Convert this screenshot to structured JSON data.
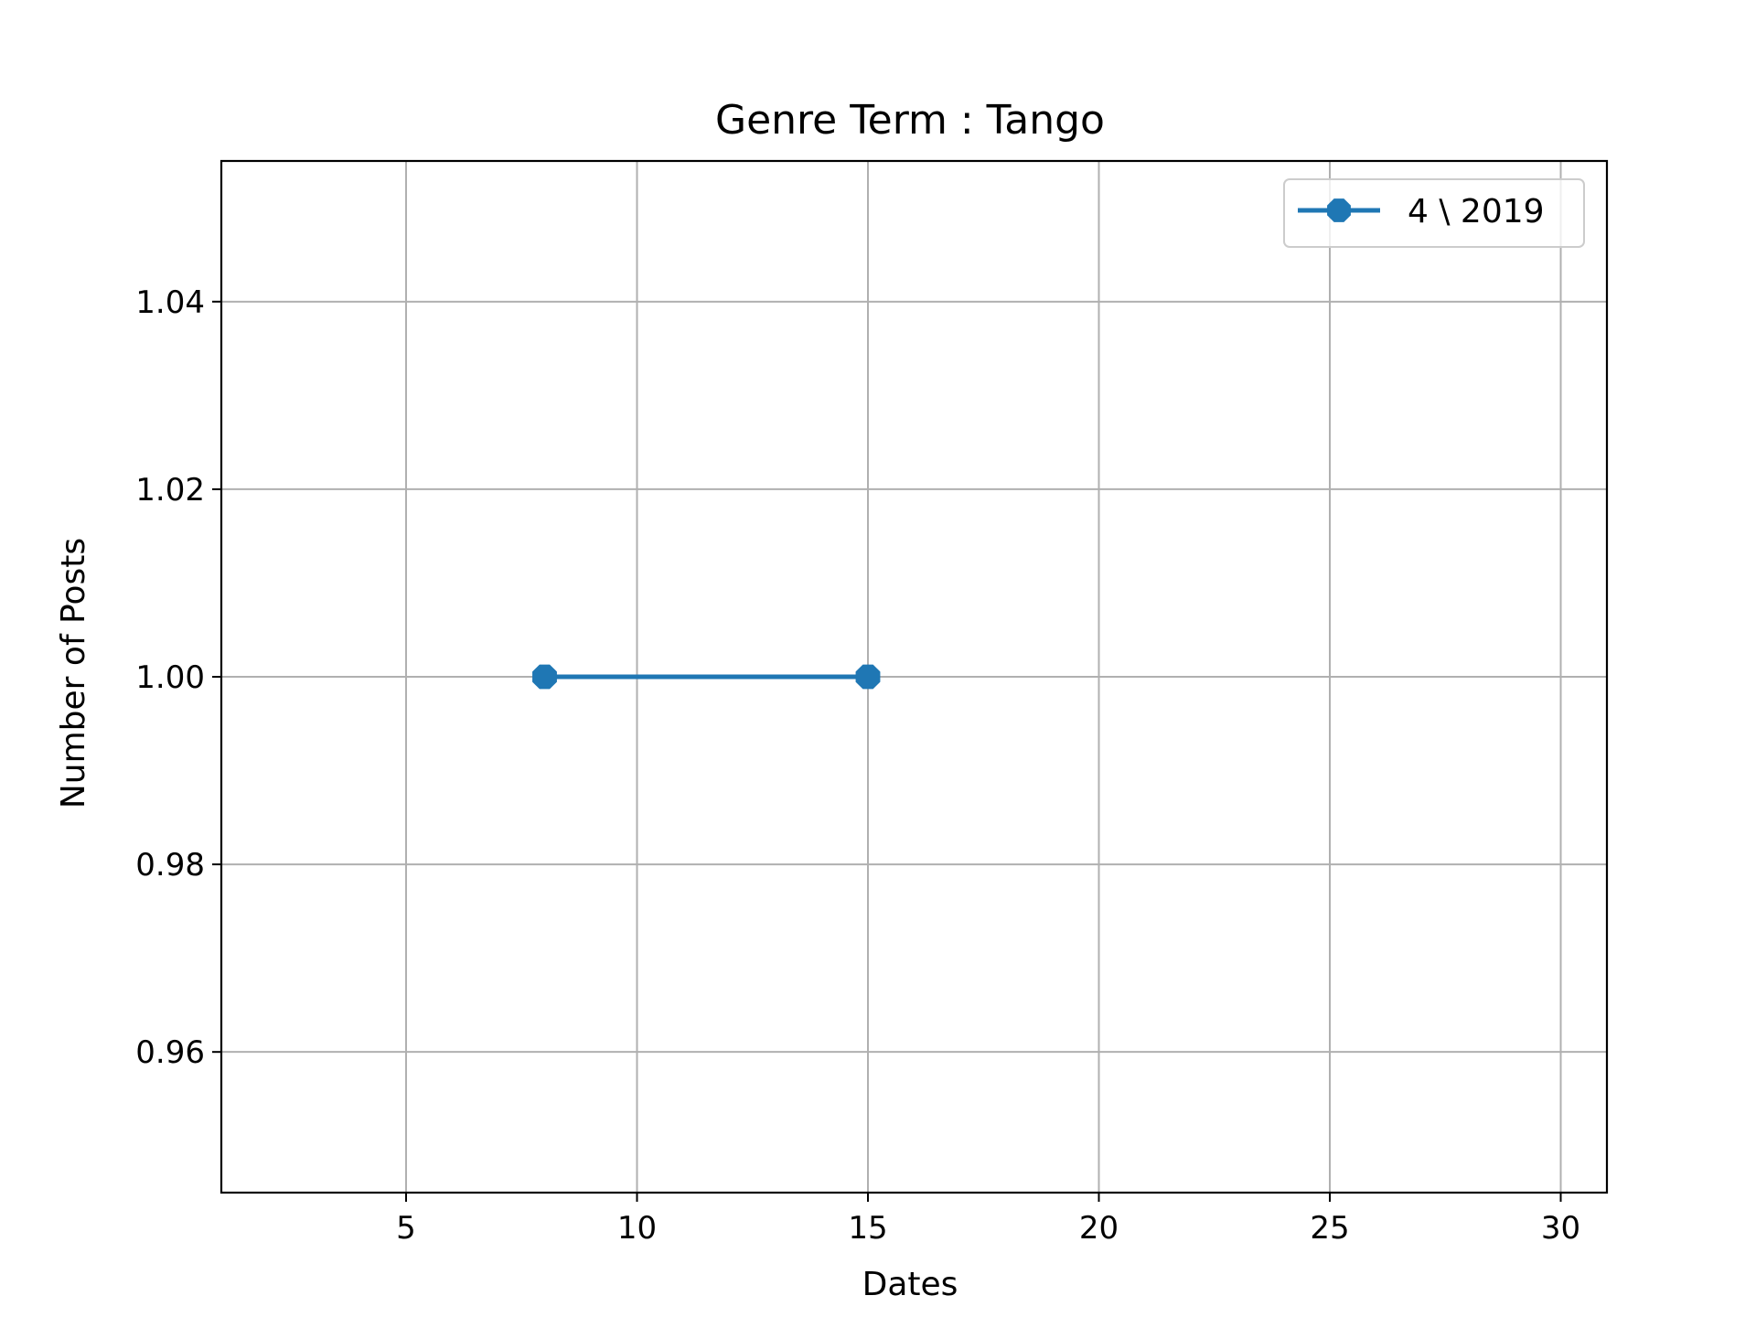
{
  "chart_data": {
    "type": "line",
    "title": "Genre Term : Tango",
    "xlabel": "Dates",
    "ylabel": "Number of Posts",
    "xlim": [
      1,
      31
    ],
    "ylim": [
      0.945,
      1.055
    ],
    "xticks": [
      5,
      10,
      15,
      20,
      25,
      30
    ],
    "yticks": [
      0.96,
      0.98,
      1.0,
      1.02,
      1.04
    ],
    "xtick_labels": [
      "5",
      "10",
      "15",
      "20",
      "25",
      "30"
    ],
    "ytick_labels": [
      "0.96",
      "0.98",
      "1.00",
      "1.02",
      "1.04"
    ],
    "grid": true,
    "legend_position": "top-right",
    "series": [
      {
        "name": "4 \\ 2019",
        "color": "#1f77b4",
        "marker": "octagon",
        "x": [
          8,
          15
        ],
        "y": [
          1.0,
          1.0
        ]
      }
    ]
  }
}
